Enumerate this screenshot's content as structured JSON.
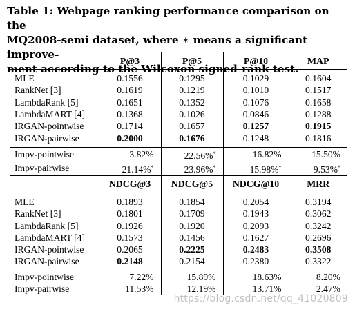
{
  "caption": {
    "line1": "Table 1: Webpage ranking performance comparison on the",
    "line2": "MQ2008-semi dataset, where ∗ means a significant improve-",
    "line3": "ment according to the Wilcoxon signed-rank test."
  },
  "table1": {
    "headers": [
      "P@3",
      "P@5",
      "P@10",
      "MAP"
    ],
    "rows": [
      {
        "name": "MLE",
        "v": [
          "0.1556",
          "0.1295",
          "0.1029",
          "0.1604"
        ]
      },
      {
        "name": "RankNet [3]",
        "v": [
          "0.1619",
          "0.1219",
          "0.1010",
          "0.1517"
        ]
      },
      {
        "name": "LambdaRank [5]",
        "v": [
          "0.1651",
          "0.1352",
          "0.1076",
          "0.1658"
        ]
      },
      {
        "name": "LambdaMART [4]",
        "v": [
          "0.1368",
          "0.1026",
          "0.0846",
          "0.1288"
        ]
      },
      {
        "name": "IRGAN-pointwise",
        "v": [
          "0.1714",
          "0.1657",
          "0.1257",
          "0.1915"
        ]
      },
      {
        "name": "IRGAN-pairwise",
        "v": [
          "0.2000",
          "0.1676",
          "0.1248",
          "0.1816"
        ]
      }
    ],
    "impv": [
      {
        "name": "Impv-pointwise",
        "v": [
          "3.82%",
          "22.56%",
          "16.82%",
          "15.50%"
        ]
      },
      {
        "name": "Impv-pairwise",
        "v": [
          "21.14%",
          "23.96%",
          "15.98%",
          "9.53%"
        ]
      }
    ]
  },
  "table2": {
    "headers": [
      "NDCG@3",
      "NDCG@5",
      "NDCG@10",
      "MRR"
    ],
    "rows": [
      {
        "name": "MLE",
        "v": [
          "0.1893",
          "0.1854",
          "0.2054",
          "0.3194"
        ]
      },
      {
        "name": "RankNet [3]",
        "v": [
          "0.1801",
          "0.1709",
          "0.1943",
          "0.3062"
        ]
      },
      {
        "name": "LambdaRank [5]",
        "v": [
          "0.1926",
          "0.1920",
          "0.2093",
          "0.3242"
        ]
      },
      {
        "name": "LambdaMART [4]",
        "v": [
          "0.1573",
          "0.1456",
          "0.1627",
          "0.2696"
        ]
      },
      {
        "name": "IRGAN-pointwise",
        "v": [
          "0.2065",
          "0.2225",
          "0.2483",
          "0.3508"
        ]
      },
      {
        "name": "IRGAN-pairwise",
        "v": [
          "0.2148",
          "0.2154",
          "0.2380",
          "0.3322"
        ]
      }
    ],
    "impv": [
      {
        "name": "Impv-pointwise",
        "v": [
          "7.22%",
          "15.89%",
          "18.63%",
          "8.20%"
        ]
      },
      {
        "name": "Impv-pairwise",
        "v": [
          "11.53%",
          "12.19%",
          "13.71%",
          "2.47%"
        ]
      }
    ]
  },
  "significance_mark": "*",
  "watermark": "https://blog.csdn.net/qq_41020809"
}
